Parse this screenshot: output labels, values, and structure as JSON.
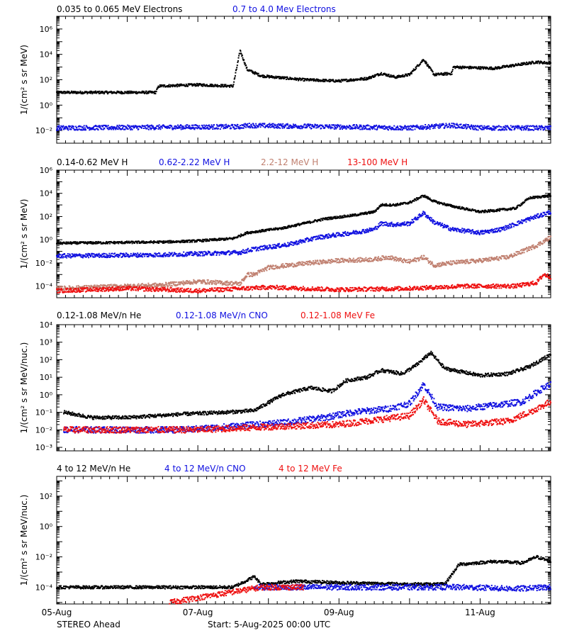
{
  "footer": {
    "left": "STEREO Ahead",
    "right": "Start:  5-Aug-2025 00:00 UTC"
  },
  "colors": {
    "black": "#000000",
    "blue": "#1010e0",
    "tan": "#c08070",
    "red": "#ee1010",
    "frame": "#000000",
    "background": "#ffffff"
  },
  "chart_data": [
    {
      "type": "scatter",
      "log_y": true,
      "ylabel": "1/(cm² s sr MeV)",
      "yticks": [
        {
          "label": "10⁶",
          "value": 6
        },
        {
          "label": "10⁴",
          "value": 4
        },
        {
          "label": "10²",
          "value": 2
        },
        {
          "label": "10⁰",
          "value": 0
        },
        {
          "label": "10⁻²",
          "value": -2
        }
      ],
      "ylim_log10": [
        -3,
        7
      ],
      "x_tick_labels": [
        "05-Aug",
        "07-Aug",
        "09-Aug",
        "11-Aug"
      ],
      "xlim_days": [
        0,
        7
      ],
      "series": [
        {
          "name": "0.035 to 0.065 MeV Electrons",
          "color": "black",
          "points": [
            [
              0,
              1.0
            ],
            [
              1.4,
              1.0
            ],
            [
              1.45,
              1.5
            ],
            [
              2.0,
              1.6
            ],
            [
              2.5,
              1.5
            ],
            [
              2.6,
              4.3
            ],
            [
              2.7,
              2.8
            ],
            [
              2.9,
              2.3
            ],
            [
              3.5,
              2.0
            ],
            [
              4.0,
              1.9
            ],
            [
              4.4,
              2.1
            ],
            [
              4.6,
              2.5
            ],
            [
              4.8,
              2.2
            ],
            [
              5.0,
              2.4
            ],
            [
              5.2,
              3.6
            ],
            [
              5.35,
              2.4
            ],
            [
              5.6,
              2.5
            ],
            [
              5.62,
              3.0
            ],
            [
              6.2,
              2.9
            ],
            [
              6.8,
              3.4
            ],
            [
              7.0,
              3.3
            ]
          ]
        },
        {
          "name": "0.7 to 4.0 Mev Electrons",
          "color": "blue",
          "points": [
            [
              0,
              -1.8
            ],
            [
              2.6,
              -1.7
            ],
            [
              2.7,
              -1.6
            ],
            [
              5.0,
              -1.8
            ],
            [
              5.6,
              -1.6
            ],
            [
              6.0,
              -1.8
            ],
            [
              7.0,
              -1.8
            ]
          ]
        }
      ]
    },
    {
      "type": "scatter",
      "log_y": true,
      "ylabel": "1/(cm² s sr MeV)",
      "yticks": [
        {
          "label": "10⁶",
          "value": 6
        },
        {
          "label": "10⁴",
          "value": 4
        },
        {
          "label": "10²",
          "value": 2
        },
        {
          "label": "10⁰",
          "value": 0
        },
        {
          "label": "10⁻²",
          "value": -2
        },
        {
          "label": "10⁻⁴",
          "value": -4
        }
      ],
      "ylim_log10": [
        -5,
        6
      ],
      "x_tick_labels": [
        "05-Aug",
        "07-Aug",
        "09-Aug",
        "11-Aug"
      ],
      "xlim_days": [
        0,
        7
      ],
      "series": [
        {
          "name": "0.14-0.62 MeV H",
          "color": "black",
          "points": [
            [
              0,
              -0.3
            ],
            [
              1.5,
              -0.2
            ],
            [
              2.0,
              -0.1
            ],
            [
              2.5,
              0.1
            ],
            [
              2.7,
              0.6
            ],
            [
              3.2,
              1.0
            ],
            [
              3.5,
              1.4
            ],
            [
              3.8,
              1.8
            ],
            [
              4.2,
              2.1
            ],
            [
              4.5,
              2.4
            ],
            [
              4.6,
              3.0
            ],
            [
              4.8,
              3.0
            ],
            [
              5.0,
              3.2
            ],
            [
              5.2,
              3.8
            ],
            [
              5.35,
              3.3
            ],
            [
              5.6,
              2.9
            ],
            [
              6.0,
              2.4
            ],
            [
              6.5,
              2.7
            ],
            [
              6.7,
              3.6
            ],
            [
              7.0,
              3.8
            ]
          ]
        },
        {
          "name": "0.62-2.22 MeV H",
          "color": "blue",
          "points": [
            [
              0,
              -1.4
            ],
            [
              1.5,
              -1.3
            ],
            [
              2.6,
              -1.1
            ],
            [
              2.8,
              -0.8
            ],
            [
              3.3,
              -0.4
            ],
            [
              3.7,
              0.2
            ],
            [
              4.2,
              0.6
            ],
            [
              4.5,
              0.9
            ],
            [
              4.6,
              1.4
            ],
            [
              4.8,
              1.3
            ],
            [
              5.0,
              1.4
            ],
            [
              5.2,
              2.3
            ],
            [
              5.35,
              1.5
            ],
            [
              5.6,
              0.9
            ],
            [
              6.0,
              0.6
            ],
            [
              6.3,
              0.9
            ],
            [
              6.7,
              1.8
            ],
            [
              7.0,
              2.4
            ]
          ]
        },
        {
          "name": "2.2-12 MeV H",
          "color": "tan",
          "points": [
            [
              0,
              -4.2
            ],
            [
              1.5,
              -3.9
            ],
            [
              2.0,
              -3.6
            ],
            [
              2.6,
              -3.8
            ],
            [
              2.7,
              -3.0
            ],
            [
              2.8,
              -3.0
            ],
            [
              3.0,
              -2.4
            ],
            [
              3.6,
              -2.0
            ],
            [
              4.0,
              -1.8
            ],
            [
              4.5,
              -1.7
            ],
            [
              4.7,
              -1.5
            ],
            [
              4.9,
              -1.8
            ],
            [
              5.0,
              -1.9
            ],
            [
              5.2,
              -1.5
            ],
            [
              5.35,
              -2.2
            ],
            [
              5.6,
              -2.0
            ],
            [
              6.0,
              -1.8
            ],
            [
              6.4,
              -1.5
            ],
            [
              6.8,
              -0.5
            ],
            [
              7.0,
              0.2
            ]
          ]
        },
        {
          "name": "13-100 MeV H",
          "color": "red",
          "points": [
            [
              0,
              -4.4
            ],
            [
              1.0,
              -4.2
            ],
            [
              2.0,
              -4.4
            ],
            [
              3.0,
              -4.1
            ],
            [
              4.0,
              -4.3
            ],
            [
              5.0,
              -4.2
            ],
            [
              5.8,
              -4.0
            ],
            [
              6.5,
              -4.0
            ],
            [
              6.8,
              -3.7
            ],
            [
              6.9,
              -3.0
            ],
            [
              7.0,
              -3.2
            ]
          ]
        }
      ]
    },
    {
      "type": "scatter",
      "log_y": true,
      "ylabel": "1/(cm² s sr MeV/nuc.)",
      "yticks": [
        {
          "label": "10⁴",
          "value": 4
        },
        {
          "label": "10³",
          "value": 3
        },
        {
          "label": "10²",
          "value": 2
        },
        {
          "label": "10¹",
          "value": 1
        },
        {
          "label": "10⁰",
          "value": 0
        },
        {
          "label": "10⁻¹",
          "value": -1
        },
        {
          "label": "10⁻²",
          "value": -2
        },
        {
          "label": "10⁻³",
          "value": -3
        }
      ],
      "ylim_log10": [
        -3.2,
        4
      ],
      "x_tick_labels": [
        "05-Aug",
        "07-Aug",
        "09-Aug",
        "11-Aug"
      ],
      "xlim_days": [
        0,
        7
      ],
      "series": [
        {
          "name": "0.12-1.08 MeV/n He",
          "color": "black",
          "points": [
            [
              0.1,
              -1.0
            ],
            [
              0.5,
              -1.3
            ],
            [
              1.0,
              -1.3
            ],
            [
              1.8,
              -1.1
            ],
            [
              2.4,
              -1.0
            ],
            [
              2.8,
              -0.9
            ],
            [
              3.2,
              0.0
            ],
            [
              3.6,
              0.4
            ],
            [
              3.9,
              0.2
            ],
            [
              4.1,
              0.8
            ],
            [
              4.4,
              1.0
            ],
            [
              4.6,
              1.4
            ],
            [
              4.9,
              1.2
            ],
            [
              5.1,
              1.7
            ],
            [
              5.3,
              2.4
            ],
            [
              5.5,
              1.5
            ],
            [
              6.0,
              1.1
            ],
            [
              6.4,
              1.2
            ],
            [
              6.7,
              1.6
            ],
            [
              7.0,
              2.3
            ]
          ]
        },
        {
          "name": "0.12-1.08 MeV/n CNO",
          "color": "blue",
          "points": [
            [
              0.1,
              -2.0
            ],
            [
              1.8,
              -2.0
            ],
            [
              3.2,
              -1.6
            ],
            [
              3.8,
              -1.3
            ],
            [
              4.2,
              -1.0
            ],
            [
              4.7,
              -0.8
            ],
            [
              5.0,
              -0.5
            ],
            [
              5.2,
              0.6
            ],
            [
              5.4,
              -0.7
            ],
            [
              5.8,
              -0.8
            ],
            [
              6.2,
              -0.6
            ],
            [
              6.6,
              -0.4
            ],
            [
              6.9,
              0.4
            ],
            [
              7.0,
              0.6
            ]
          ]
        },
        {
          "name": "0.12-1.08 MeV Fe",
          "color": "red",
          "points": [
            [
              0.1,
              -2.0
            ],
            [
              2.0,
              -2.0
            ],
            [
              3.2,
              -1.8
            ],
            [
              4.0,
              -1.7
            ],
            [
              4.6,
              -1.4
            ],
            [
              5.0,
              -1.2
            ],
            [
              5.2,
              -0.3
            ],
            [
              5.4,
              -1.5
            ],
            [
              5.8,
              -1.7
            ],
            [
              6.4,
              -1.5
            ],
            [
              6.7,
              -1.0
            ],
            [
              7.0,
              -0.4
            ]
          ]
        }
      ]
    },
    {
      "type": "scatter",
      "log_y": true,
      "ylabel": "1/(cm² s sr MeV/nuc.)",
      "yticks": [
        {
          "label": "10²",
          "value": 2
        },
        {
          "label": "10⁰",
          "value": 0
        },
        {
          "label": "10⁻²",
          "value": -2
        },
        {
          "label": "10⁻⁴",
          "value": -4
        }
      ],
      "ylim_log10": [
        -5.1,
        3.3
      ],
      "x_tick_labels": [
        "05-Aug",
        "07-Aug",
        "09-Aug",
        "11-Aug"
      ],
      "xlim_days": [
        0,
        7
      ],
      "series": [
        {
          "name": "4 to 12 MeV/n He",
          "color": "black",
          "points": [
            [
              0.0,
              -4.0
            ],
            [
              1.5,
              -4.0
            ],
            [
              2.5,
              -4.0
            ],
            [
              2.8,
              -3.3
            ],
            [
              2.9,
              -3.8
            ],
            [
              3.4,
              -3.6
            ],
            [
              4.0,
              -3.7
            ],
            [
              5.0,
              -3.8
            ],
            [
              5.5,
              -3.8
            ],
            [
              5.7,
              -2.5
            ],
            [
              6.2,
              -2.3
            ],
            [
              6.6,
              -2.4
            ],
            [
              6.8,
              -2.0
            ],
            [
              7.0,
              -2.3
            ]
          ]
        },
        {
          "name": "4 to 12 MeV/n CNO",
          "color": "blue",
          "points": [
            [
              2.8,
              -4.0
            ],
            [
              4.5,
              -4.0
            ],
            [
              5.8,
              -4.0
            ],
            [
              6.5,
              -4.1
            ],
            [
              7.0,
              -4.0
            ]
          ]
        },
        {
          "name": "4 to 12 MeV Fe",
          "color": "red",
          "points": [
            [
              1.6,
              -5.0
            ],
            [
              2.9,
              -4.0
            ],
            [
              3.5,
              -4.0
            ]
          ]
        }
      ]
    }
  ]
}
